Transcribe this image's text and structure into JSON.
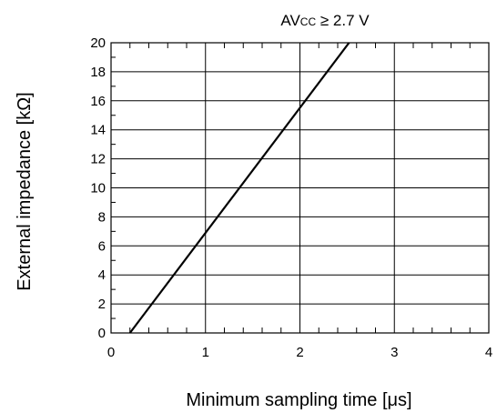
{
  "chart_data": {
    "type": "line",
    "title": "",
    "xlabel": "Minimum sampling time [μs]",
    "ylabel": "External impedance [kΩ]",
    "xlim": [
      0,
      4
    ],
    "ylim": [
      0,
      20
    ],
    "x_ticks": [
      "0",
      "1",
      "2",
      "3",
      "4"
    ],
    "y_ticks": [
      "0",
      "2",
      "4",
      "6",
      "8",
      "10",
      "12",
      "14",
      "16",
      "18",
      "20"
    ],
    "grid": true,
    "legend": "none",
    "annotation": {
      "main": "AV",
      "sub": "CC",
      "rest": " ≥ 2.7 V"
    },
    "series": [
      {
        "x": [
          0.2,
          2.52
        ],
        "y": [
          0,
          20
        ],
        "color": "#000000"
      }
    ]
  }
}
